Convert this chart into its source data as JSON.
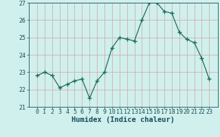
{
  "x": [
    0,
    1,
    2,
    3,
    4,
    5,
    6,
    7,
    8,
    9,
    10,
    11,
    12,
    13,
    14,
    15,
    16,
    17,
    18,
    19,
    20,
    21,
    22,
    23
  ],
  "y": [
    22.8,
    23.0,
    22.8,
    22.1,
    22.3,
    22.5,
    22.6,
    21.5,
    22.5,
    23.0,
    24.4,
    25.0,
    24.9,
    24.8,
    26.0,
    27.0,
    27.0,
    26.5,
    26.4,
    25.3,
    24.9,
    24.7,
    23.8,
    22.6
  ],
  "xlabel": "Humidex (Indice chaleur)",
  "ylim": [
    21,
    27
  ],
  "yticks": [
    21,
    22,
    23,
    24,
    25,
    26,
    27
  ],
  "xticks": [
    0,
    1,
    2,
    3,
    4,
    5,
    6,
    7,
    8,
    9,
    10,
    11,
    12,
    13,
    14,
    15,
    16,
    17,
    18,
    19,
    20,
    21,
    22,
    23
  ],
  "line_color": "#1a6b5a",
  "marker": "+",
  "marker_size": 4.0,
  "bg_color": "#cff0ec",
  "grid_color": "#d4a0a0",
  "tick_label_color": "#1a4a5a",
  "xlabel_color": "#1a4a5a",
  "xlabel_fontsize": 7.5,
  "tick_fontsize": 6.0,
  "ylabel_fontsize": 6.0
}
